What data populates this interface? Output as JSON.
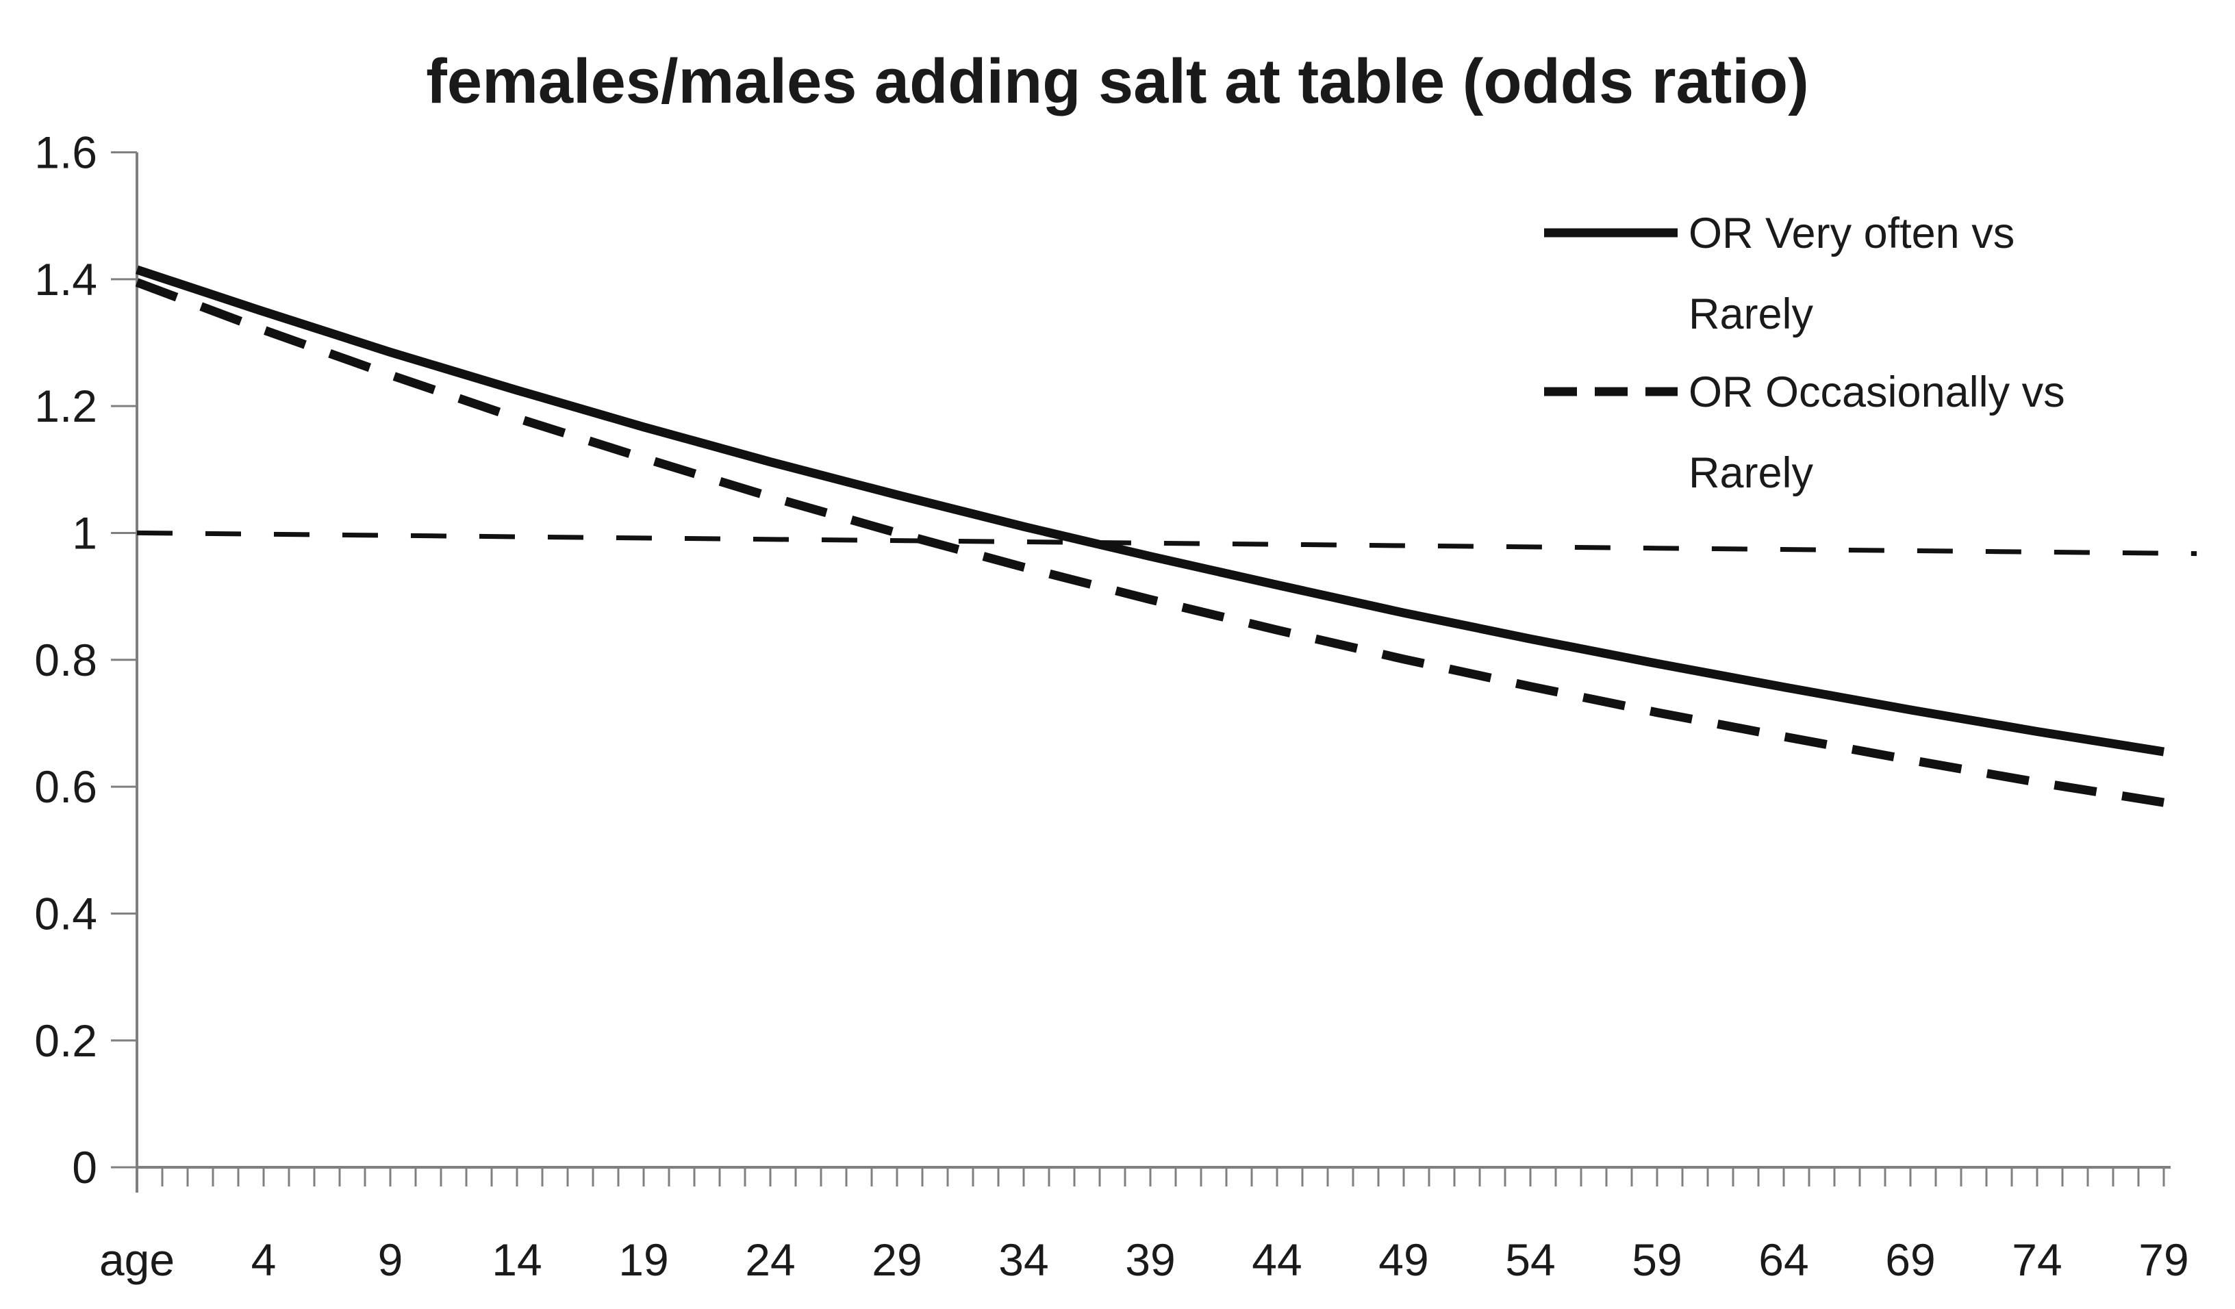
{
  "title": "females/males adding salt at table (odds ratio)",
  "colors": {
    "line": "#111111",
    "axis": "#7f7f7f",
    "text": "#1a1a1a",
    "background": "#ffffff"
  },
  "chart_data": {
    "type": "line",
    "title": "females/males adding salt at table (odds ratio)",
    "xlabel": "age",
    "ylabel": "",
    "grid": false,
    "legend_position": "right-top",
    "x_axis": {
      "first_label": "age",
      "tick_labels": [
        "age",
        "4",
        "9",
        "14",
        "19",
        "24",
        "29",
        "34",
        "39",
        "44",
        "49",
        "54",
        "59",
        "64",
        "69",
        "74",
        "79"
      ],
      "label_interval": 5,
      "minor_tick_every": 1,
      "index_range": [
        0,
        80
      ]
    },
    "y_axis": {
      "min": 0,
      "max": 1.6,
      "step": 0.2,
      "tick_labels": [
        "0",
        "0.2",
        "0.4",
        "0.6",
        "0.8",
        "1",
        "1.2",
        "1.4",
        "1.6"
      ]
    },
    "series": [
      {
        "name": "OR Very often vs Rarely",
        "legend_lines": [
          "OR Very often vs",
          "Rarely"
        ],
        "in_legend": true,
        "style": "solid",
        "stroke_width": 13,
        "dash": null,
        "points": [
          [
            0,
            1.415
          ],
          [
            5,
            1.349
          ],
          [
            10,
            1.285
          ],
          [
            15,
            1.225
          ],
          [
            20,
            1.167
          ],
          [
            25,
            1.112
          ],
          [
            30,
            1.06
          ],
          [
            35,
            1.01
          ],
          [
            40,
            0.963
          ],
          [
            45,
            0.918
          ],
          [
            50,
            0.874
          ],
          [
            55,
            0.833
          ],
          [
            60,
            0.794
          ],
          [
            65,
            0.757
          ],
          [
            70,
            0.721
          ],
          [
            75,
            0.687
          ],
          [
            80,
            0.655
          ]
        ]
      },
      {
        "name": "OR Occasionally vs Rarely",
        "legend_lines": [
          "OR Occasionally vs",
          "Rarely"
        ],
        "in_legend": true,
        "style": "dashed",
        "stroke_width": 13,
        "dash": "62 38",
        "points": [
          [
            0,
            1.395
          ],
          [
            5,
            1.32
          ],
          [
            10,
            1.249
          ],
          [
            15,
            1.181
          ],
          [
            20,
            1.118
          ],
          [
            25,
            1.057
          ],
          [
            30,
            1.0
          ],
          [
            35,
            0.946
          ],
          [
            40,
            0.895
          ],
          [
            45,
            0.847
          ],
          [
            50,
            0.801
          ],
          [
            55,
            0.758
          ],
          [
            60,
            0.717
          ],
          [
            65,
            0.679
          ],
          [
            70,
            0.642
          ],
          [
            75,
            0.607
          ],
          [
            80,
            0.575
          ]
        ]
      },
      {
        "name": "reference odds ratio 1",
        "legend_lines": null,
        "in_legend": false,
        "style": "thin-dashed",
        "stroke_width": 7,
        "dash": "52 48",
        "points": [
          [
            0,
            1.0
          ],
          [
            10,
            0.996
          ],
          [
            20,
            0.992
          ],
          [
            30,
            0.988
          ],
          [
            40,
            0.984
          ],
          [
            50,
            0.98
          ],
          [
            60,
            0.976
          ],
          [
            70,
            0.972
          ],
          [
            80,
            0.968
          ],
          [
            81.3,
            0.9675
          ]
        ]
      }
    ]
  }
}
